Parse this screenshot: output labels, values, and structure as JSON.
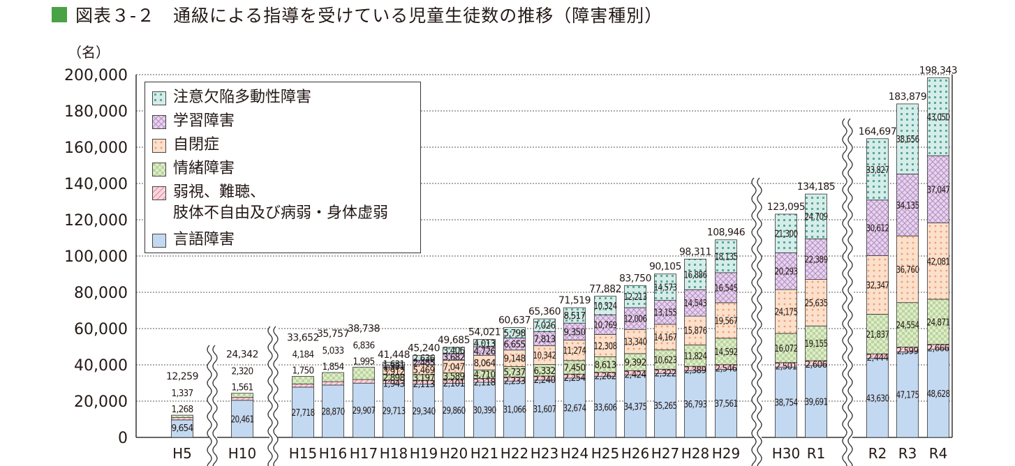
{
  "title": "図表３-２　通級による指導を受けている児童生徒数の推移（障害種別）",
  "colors": {
    "title_marker": "#4aa246",
    "adhd": "#d5ede9",
    "ld": "#e6d4ec",
    "autism": "#fbe0cc",
    "emotional": "#dfeccb",
    "other": "#f9d7de",
    "speech": "#c3d9f1"
  },
  "chart_data": {
    "type": "bar",
    "stacked": true,
    "title": "",
    "ylabel": "（名）",
    "xlabel": "",
    "ylim": [
      0,
      200000
    ],
    "yticks": [
      "0",
      "20,000",
      "40,000",
      "60,000",
      "80,000",
      "100,000",
      "120,000",
      "140,000",
      "160,000",
      "180,000",
      "200,000"
    ],
    "ytick_values": [
      0,
      20000,
      40000,
      60000,
      80000,
      100000,
      120000,
      140000,
      160000,
      180000,
      200000
    ],
    "grid": "horizontal dashed",
    "legend_position": "top-left",
    "axis_breaks": [
      "H5|H10",
      "H10|H15",
      "H29|H30",
      "R1|R2"
    ],
    "categories": [
      "H5",
      "H10",
      "H15",
      "H16",
      "H17",
      "H18",
      "H19",
      "H20",
      "H21",
      "H22",
      "H23",
      "H24",
      "H25",
      "H26",
      "H27",
      "H28",
      "H29",
      "H30",
      "R1",
      "R2",
      "R3",
      "R4"
    ],
    "totals": [
      12259,
      24342,
      33652,
      35757,
      38738,
      41448,
      45240,
      49685,
      54021,
      60637,
      65360,
      71519,
      77882,
      83750,
      90105,
      98311,
      108946,
      123095,
      134185,
      164697,
      183879,
      198343
    ],
    "series": [
      {
        "key": "speech",
        "name": "言語障害",
        "values": [
          9654,
          20461,
          27718,
          28870,
          29907,
          29713,
          29340,
          29860,
          30390,
          31066,
          31607,
          32674,
          33606,
          34375,
          35265,
          36793,
          37561,
          38754,
          39691,
          43630,
          47175,
          48628
        ]
      },
      {
        "key": "other",
        "name": "弱視、難聴、\n肢体不自由及び病弱・身体虚弱",
        "values": [
          1268,
          1561,
          1750,
          1854,
          1995,
          1943,
          2113,
          2101,
          2118,
          2233,
          2240,
          2254,
          2262,
          2424,
          2322,
          2389,
          2546,
          2501,
          2606,
          2444,
          2599,
          2666
        ]
      },
      {
        "key": "emotional",
        "name": "情緒障害",
        "values": [
          1337,
          2320,
          4184,
          5033,
          6836,
          2898,
          3197,
          3589,
          4710,
          5737,
          6332,
          7450,
          8613,
          9392,
          10623,
          11824,
          14592,
          16072,
          19155,
          21837,
          24554,
          24871
        ]
      },
      {
        "key": "autism",
        "name": "自閉症",
        "values": [
          null,
          null,
          null,
          null,
          null,
          3912,
          5469,
          7047,
          8064,
          9148,
          10342,
          11274,
          12308,
          13340,
          14167,
          15876,
          19567,
          24175,
          25635,
          32347,
          36760,
          42081
        ]
      },
      {
        "key": "ld",
        "name": "学習障害",
        "values": [
          null,
          null,
          null,
          null,
          null,
          1351,
          2485,
          3682,
          4726,
          6655,
          7813,
          9350,
          10769,
          12006,
          13155,
          14543,
          16545,
          20293,
          22389,
          30612,
          34135,
          37047
        ]
      },
      {
        "key": "adhd",
        "name": "注意欠陥多動性障害",
        "values": [
          null,
          null,
          null,
          null,
          null,
          1631,
          2636,
          3406,
          4013,
          5798,
          7026,
          8517,
          10324,
          12213,
          14573,
          16886,
          18135,
          21300,
          24709,
          33827,
          38656,
          43050
        ]
      }
    ]
  }
}
